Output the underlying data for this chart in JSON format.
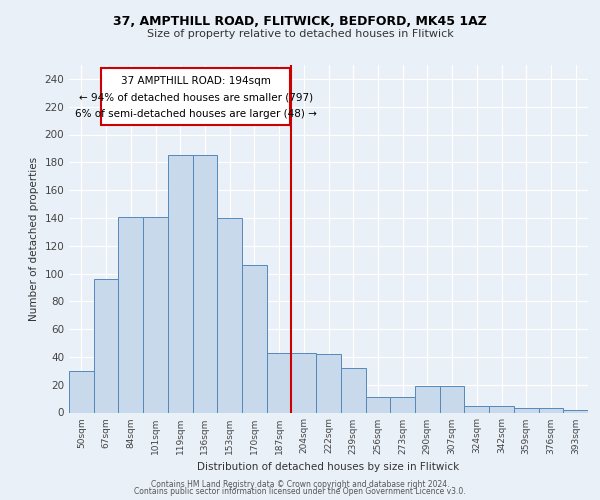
{
  "title1": "37, AMPTHILL ROAD, FLITWICK, BEDFORD, MK45 1AZ",
  "title2": "Size of property relative to detached houses in Flitwick",
  "xlabel": "Distribution of detached houses by size in Flitwick",
  "ylabel": "Number of detached properties",
  "bar_labels": [
    "50sqm",
    "67sqm",
    "84sqm",
    "101sqm",
    "119sqm",
    "136sqm",
    "153sqm",
    "170sqm",
    "187sqm",
    "204sqm",
    "222sqm",
    "239sqm",
    "256sqm",
    "273sqm",
    "290sqm",
    "307sqm",
    "324sqm",
    "342sqm",
    "359sqm",
    "376sqm",
    "393sqm"
  ],
  "bar_heights": [
    30,
    96,
    141,
    141,
    185,
    185,
    140,
    106,
    43,
    43,
    42,
    32,
    11,
    11,
    19,
    19,
    5,
    5,
    3,
    3,
    2
  ],
  "bar_color": "#c9d9ec",
  "bar_edge_color": "#5588bb",
  "vline_color": "#cc0000",
  "annotation_text_line1": "37 AMPTHILL ROAD: 194sqm",
  "annotation_text_line2": "← 94% of detached houses are smaller (797)",
  "annotation_text_line3": "6% of semi-detached houses are larger (48) →",
  "annotation_box_color": "#ffffff",
  "annotation_box_edge": "#cc0000",
  "ylim": [
    0,
    250
  ],
  "yticks": [
    0,
    20,
    40,
    60,
    80,
    100,
    120,
    140,
    160,
    180,
    200,
    220,
    240
  ],
  "footer1": "Contains HM Land Registry data © Crown copyright and database right 2024.",
  "footer2": "Contains public sector information licensed under the Open Government Licence v3.0.",
  "background_color": "#eaf0f8",
  "plot_background": "#eaf0f8"
}
